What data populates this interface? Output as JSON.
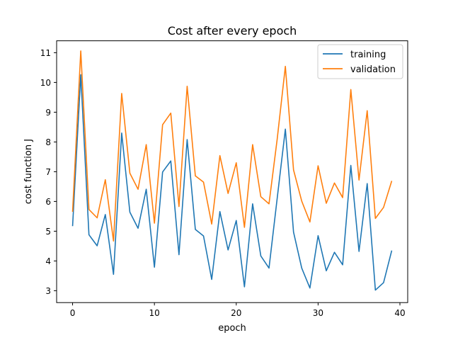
{
  "chart_data": {
    "type": "line",
    "title": "Cost after every epoch",
    "xlabel": "epoch",
    "ylabel": "cost function J",
    "xlim": [
      -1.95,
      40.95
    ],
    "ylim": [
      2.6,
      11.4
    ],
    "xticks": [
      0,
      10,
      20,
      30,
      40
    ],
    "yticks": [
      3,
      4,
      5,
      6,
      7,
      8,
      9,
      10,
      11
    ],
    "grid": false,
    "legend_position": "top-right",
    "x": [
      0,
      1,
      2,
      3,
      4,
      5,
      6,
      7,
      8,
      9,
      10,
      11,
      12,
      13,
      14,
      15,
      16,
      17,
      18,
      19,
      20,
      21,
      22,
      23,
      24,
      25,
      26,
      27,
      28,
      29,
      30,
      31,
      32,
      33,
      34,
      35,
      36,
      37,
      38,
      39
    ],
    "series": [
      {
        "name": "training",
        "color": "#1f77b4",
        "values": [
          5.17,
          10.26,
          4.88,
          4.51,
          5.56,
          3.55,
          8.3,
          5.64,
          5.1,
          6.41,
          3.79,
          6.99,
          7.36,
          4.21,
          8.08,
          5.06,
          4.84,
          3.38,
          5.66,
          4.37,
          5.36,
          3.13,
          5.92,
          4.17,
          3.76,
          6.1,
          8.43,
          4.97,
          3.76,
          3.09,
          4.85,
          3.67,
          4.29,
          3.87,
          7.21,
          4.32,
          6.6,
          3.02,
          3.27,
          4.35
        ]
      },
      {
        "name": "validation",
        "color": "#ff7f0e",
        "values": [
          5.65,
          11.06,
          5.73,
          5.45,
          6.73,
          4.67,
          9.63,
          6.95,
          6.41,
          7.91,
          5.27,
          8.58,
          8.97,
          5.83,
          9.87,
          6.86,
          6.65,
          5.24,
          7.54,
          6.27,
          7.3,
          5.13,
          7.91,
          6.16,
          5.92,
          8.09,
          10.54,
          7.06,
          6.01,
          5.31,
          7.2,
          5.94,
          6.62,
          6.13,
          9.76,
          6.72,
          9.05,
          5.43,
          5.8,
          6.69
        ]
      }
    ]
  }
}
